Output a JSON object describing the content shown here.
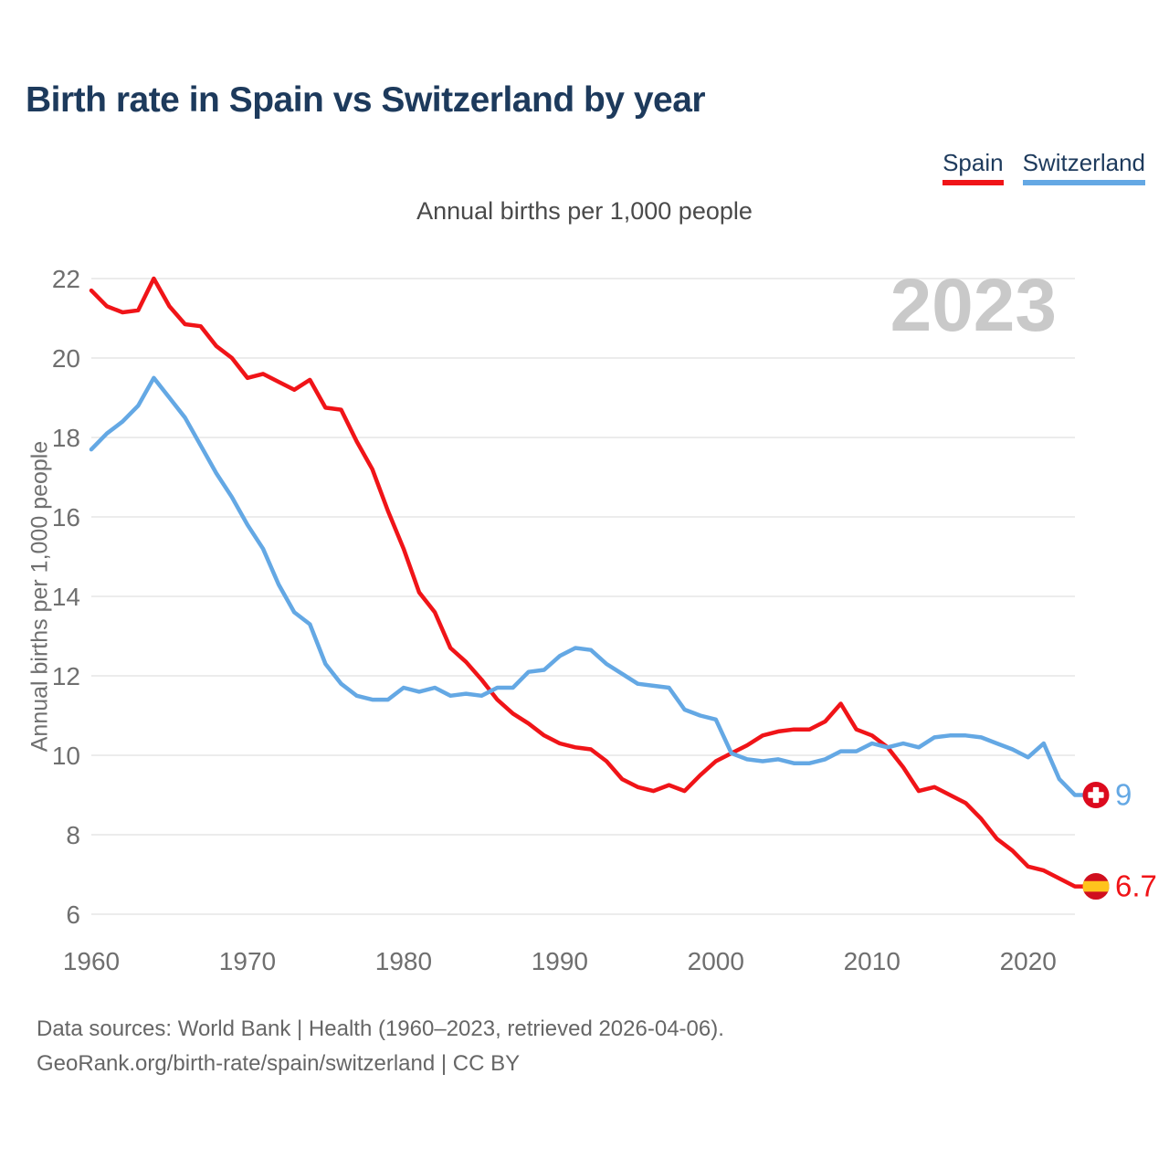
{
  "page": {
    "title": "Birth rate in Spain vs Switzerland by year",
    "subtitle": "Annual births per 1,000 people",
    "watermark": "2023",
    "footer_line1": "Data sources: World Bank | Health (1960–2023, retrieved 2026-04-06).",
    "footer_line2": "GeoRank.org/birth-rate/spain/switzerland | CC BY"
  },
  "legend": {
    "position": "top-right",
    "items": [
      {
        "label": "Spain",
        "color": "#f01418"
      },
      {
        "label": "Switzerland",
        "color": "#64a8e4"
      }
    ]
  },
  "chart_data": {
    "type": "line",
    "title": "Birth rate in Spain vs Switzerland by year",
    "ylabel": "Annual births per 1,000 people",
    "xlabel": "",
    "grid": "horizontal-only",
    "legend_position": "top-right",
    "watermark": "2023",
    "xlim": [
      1960,
      2023
    ],
    "ylim": [
      6,
      22
    ],
    "xticks": [
      1960,
      1970,
      1980,
      1990,
      2000,
      2010,
      2020
    ],
    "yticks": [
      6,
      8,
      10,
      12,
      14,
      16,
      18,
      20,
      22
    ],
    "x": [
      1960,
      1961,
      1962,
      1963,
      1964,
      1965,
      1966,
      1967,
      1968,
      1969,
      1970,
      1971,
      1972,
      1973,
      1974,
      1975,
      1976,
      1977,
      1978,
      1979,
      1980,
      1981,
      1982,
      1983,
      1984,
      1985,
      1986,
      1987,
      1988,
      1989,
      1990,
      1991,
      1992,
      1993,
      1994,
      1995,
      1996,
      1997,
      1998,
      1999,
      2000,
      2001,
      2002,
      2003,
      2004,
      2005,
      2006,
      2007,
      2008,
      2009,
      2010,
      2011,
      2012,
      2013,
      2014,
      2015,
      2016,
      2017,
      2018,
      2019,
      2020,
      2021,
      2022,
      2023
    ],
    "series": [
      {
        "name": "Spain",
        "color": "#f01418",
        "end_label": "6.7",
        "flag": "spain",
        "values": [
          21.7,
          21.3,
          21.15,
          21.2,
          22.0,
          21.3,
          20.85,
          20.8,
          20.3,
          20.0,
          19.5,
          19.6,
          19.4,
          19.2,
          19.45,
          18.75,
          18.7,
          17.9,
          17.2,
          16.15,
          15.2,
          14.1,
          13.6,
          12.7,
          12.35,
          11.9,
          11.4,
          11.05,
          10.8,
          10.5,
          10.3,
          10.2,
          10.15,
          9.85,
          9.4,
          9.2,
          9.1,
          9.25,
          9.1,
          9.5,
          9.85,
          10.05,
          10.25,
          10.5,
          10.6,
          10.65,
          10.65,
          10.85,
          11.3,
          10.65,
          10.5,
          10.2,
          9.7,
          9.1,
          9.2,
          9.0,
          8.8,
          8.4,
          7.9,
          7.6,
          7.2,
          7.1,
          6.9,
          6.7
        ]
      },
      {
        "name": "Switzerland",
        "color": "#64a8e4",
        "end_label": "9",
        "flag": "switzerland",
        "values": [
          17.7,
          18.1,
          18.4,
          18.8,
          19.5,
          19.0,
          18.5,
          17.8,
          17.1,
          16.5,
          15.8,
          15.2,
          14.3,
          13.6,
          13.3,
          12.3,
          11.8,
          11.5,
          11.4,
          11.4,
          11.7,
          11.6,
          11.7,
          11.5,
          11.55,
          11.5,
          11.7,
          11.7,
          12.1,
          12.15,
          12.5,
          12.7,
          12.65,
          12.3,
          12.05,
          11.8,
          11.75,
          11.7,
          11.15,
          11.0,
          10.9,
          10.05,
          9.9,
          9.85,
          9.9,
          9.8,
          9.8,
          9.9,
          10.1,
          10.1,
          10.3,
          10.2,
          10.3,
          10.2,
          10.45,
          10.5,
          10.5,
          10.45,
          10.3,
          10.15,
          9.95,
          10.3,
          9.4,
          9.0
        ]
      }
    ],
    "flag_colors": {
      "swiss_red": "#dc0a1e",
      "swiss_cross": "#ffffff",
      "spain_red": "#d00f1e",
      "spain_yellow": "#ffc41d"
    },
    "axis_text_color": "#6f6f6f",
    "gridline_color": "#e6e6e6",
    "watermark_color": "#c9c9c9"
  }
}
